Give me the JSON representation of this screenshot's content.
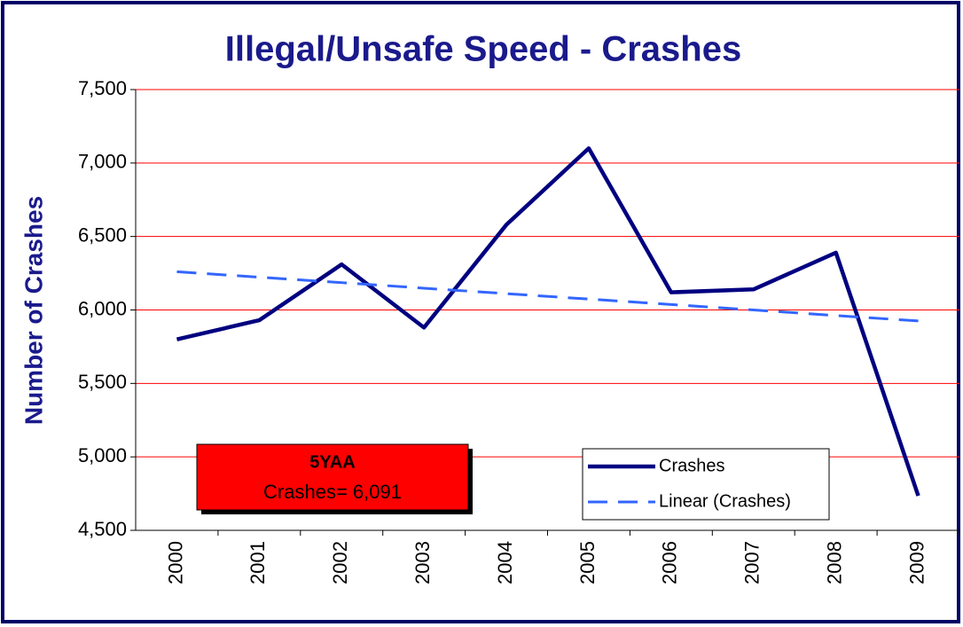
{
  "chart_data": {
    "type": "line",
    "title": "Illegal/Unsafe Speed - Crashes",
    "y_label": "Number of Crashes",
    "categories": [
      "2000",
      "2001",
      "2002",
      "2003",
      "2004",
      "2005",
      "2006",
      "2007",
      "2008",
      "2009"
    ],
    "series": [
      {
        "name": "Crashes",
        "color": "#000080",
        "style": "solid",
        "values": [
          5800,
          5930,
          6310,
          5880,
          6580,
          7100,
          6120,
          6140,
          6390,
          4735
        ]
      },
      {
        "name": "Linear (Crashes)",
        "color": "#3366ff",
        "style": "dashed",
        "values": [
          6260,
          6223,
          6186,
          6148,
          6111,
          6074,
          6037,
          6000,
          5962,
          5925
        ]
      }
    ],
    "ylim": [
      4500,
      7500
    ],
    "yticks": [
      {
        "value": 4500,
        "label": "4,500"
      },
      {
        "value": 5000,
        "label": "5,000"
      },
      {
        "value": 5500,
        "label": "5,500"
      },
      {
        "value": 6000,
        "label": "6,000"
      },
      {
        "value": 6500,
        "label": "6,500"
      },
      {
        "value": 7000,
        "label": "7,000"
      },
      {
        "value": 7500,
        "label": "7,500"
      }
    ],
    "grid": true,
    "grid_color": "#ff0000",
    "legend": "lower right",
    "annotation": {
      "title": "5YAA",
      "text": "Crashes= 6,091"
    }
  }
}
